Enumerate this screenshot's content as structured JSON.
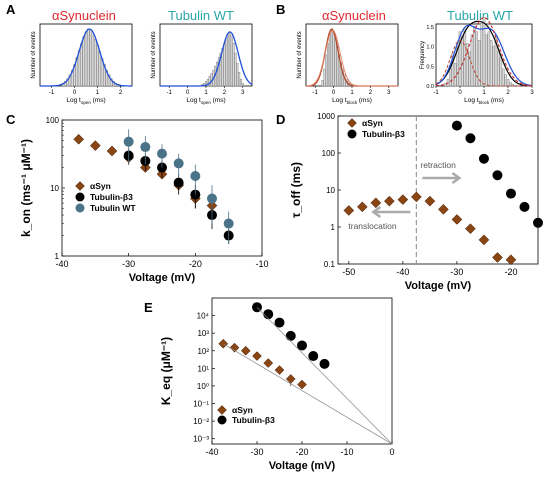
{
  "chart_data": [
    {
      "panel": "A",
      "type": "bar",
      "plots": [
        {
          "title": "αSynuclein",
          "title_color": "#e0282e",
          "ylabel": "Number of events",
          "xlabel": "Log t_open (ms)",
          "xlim": [
            -1.5,
            2.5
          ],
          "xticks": [
            "-1",
            "0",
            "1",
            "2"
          ],
          "bins_x": [
            -0.5,
            -0.4,
            -0.3,
            -0.2,
            -0.1,
            0,
            0.1,
            0.2,
            0.3,
            0.4,
            0.5,
            0.6,
            0.7,
            0.8,
            0.9,
            1.0,
            1.1,
            1.2,
            1.3,
            1.4,
            1.5,
            1.6,
            1.7,
            1.8,
            1.9
          ],
          "bins_y": [
            0.05,
            0.08,
            0.13,
            0.2,
            0.28,
            0.38,
            0.5,
            0.62,
            0.74,
            0.86,
            0.95,
            1.0,
            0.97,
            0.9,
            0.82,
            0.72,
            0.6,
            0.48,
            0.38,
            0.28,
            0.2,
            0.13,
            0.08,
            0.05,
            0.03
          ],
          "fit_color": "#1f4fd8"
        },
        {
          "title": "Tubulin WT",
          "title_color": "#2aa6a8",
          "ylabel": "Number of events",
          "xlabel": "Log t_open (ms)",
          "xlim": [
            -1.5,
            3.5
          ],
          "xticks": [
            "-1",
            "0",
            "1",
            "2",
            "3"
          ],
          "bins_x": [
            0.8,
            0.9,
            1.0,
            1.1,
            1.2,
            1.3,
            1.4,
            1.5,
            1.6,
            1.7,
            1.8,
            1.9,
            2.0,
            2.1,
            2.2,
            2.3,
            2.4,
            2.5,
            2.6,
            2.7,
            2.8,
            2.9,
            3.0
          ],
          "bins_y": [
            0.03,
            0.05,
            0.08,
            0.12,
            0.17,
            0.22,
            0.28,
            0.35,
            0.42,
            0.5,
            0.58,
            0.66,
            0.74,
            0.83,
            0.9,
            0.95,
            0.88,
            0.75,
            0.58,
            0.4,
            0.24,
            0.12,
            0.05
          ],
          "fit_color": "#1f4fd8"
        }
      ]
    },
    {
      "panel": "B",
      "type": "bar",
      "plots": [
        {
          "title": "αSynuclein",
          "title_color": "#e0282e",
          "ylabel": "Number of events",
          "xlabel": "Log t_block (ms)",
          "xlim": [
            -1.5,
            3.5
          ],
          "xticks": [
            "-1",
            "0",
            "1",
            "2",
            "3"
          ],
          "bins_x": [
            -0.6,
            -0.5,
            -0.4,
            -0.3,
            -0.2,
            -0.1,
            0,
            0.1,
            0.2,
            0.3,
            0.4,
            0.5,
            0.6,
            0.7,
            0.8,
            0.9,
            1.0,
            1.1,
            1.2
          ],
          "bins_y": [
            0.1,
            0.3,
            0.55,
            0.75,
            0.9,
            1.0,
            0.95,
            0.82,
            0.7,
            0.55,
            0.42,
            0.3,
            0.2,
            0.12,
            0.08,
            0.05,
            0.03,
            0.02,
            0.01
          ],
          "fit_color": "#b5452a"
        },
        {
          "title": "Tubulin WT",
          "title_color": "#2aa6a8",
          "ylabel": "Frequency",
          "xlabel": "Log t_block (ms)",
          "xlim": [
            -1,
            3
          ],
          "xticks": [
            "-1",
            "0",
            "1",
            "2",
            "3"
          ],
          "yticks": [
            "0.0",
            "0.5",
            "1.0",
            "1.5"
          ],
          "bins_x": [
            -0.6,
            -0.5,
            -0.4,
            -0.3,
            -0.2,
            -0.1,
            0,
            0.1,
            0.2,
            0.3,
            0.4,
            0.5,
            0.6,
            0.7,
            0.8,
            0.9,
            1.0,
            1.1,
            1.2,
            1.3,
            1.4,
            1.5,
            1.6,
            1.7,
            1.8,
            1.9,
            2.0,
            2.1,
            2.2
          ],
          "bins_y": [
            0.05,
            0.12,
            0.3,
            0.55,
            0.4,
            0.7,
            0.95,
            0.85,
            1.0,
            0.75,
            0.6,
            0.9,
            1.05,
            0.95,
            0.8,
            1.1,
            1.2,
            0.9,
            0.95,
            0.8,
            0.7,
            0.85,
            0.6,
            0.5,
            0.3,
            0.2,
            0.12,
            0.06,
            0.03
          ],
          "fit_color": "#1f4fd8"
        }
      ]
    },
    {
      "panel": "C",
      "type": "scatter",
      "ylabel": "k_on (ms⁻¹ μM⁻¹)",
      "xlabel": "Voltage (mV)",
      "xlim": [
        -40,
        -10
      ],
      "ylim": [
        1,
        100
      ],
      "yscale": "log",
      "xticks": [
        -40,
        -30,
        -20,
        -10
      ],
      "yticks": [
        1,
        10,
        100
      ],
      "legend": [
        "αSyn",
        "Tubulin-β3",
        "Tubulin WT"
      ],
      "series": [
        {
          "name": "αSyn",
          "color": "#8b4513",
          "marker": "diamond",
          "x": [
            -37.5,
            -35,
            -32.5,
            -30,
            -27.5,
            -25,
            -22.5,
            -20,
            -17.5
          ],
          "y": [
            52,
            42,
            35,
            28,
            20,
            16,
            11,
            7,
            5.5
          ],
          "err": [
            0,
            0,
            0,
            0,
            0,
            0,
            0,
            2,
            0
          ]
        },
        {
          "name": "Tubulin-β3",
          "color": "#000000",
          "marker": "circle",
          "x": [
            -30,
            -27.5,
            -25,
            -22.5,
            -20,
            -17.5,
            -15
          ],
          "y": [
            30,
            25,
            20,
            12,
            8,
            4,
            2
          ],
          "err": [
            8,
            7,
            6,
            4,
            3,
            1.5,
            0.5
          ]
        },
        {
          "name": "Tubulin WT",
          "color": "#4a7388",
          "marker": "circle",
          "x": [
            -30,
            -27.5,
            -25,
            -22.5,
            -20,
            -17.5,
            -15
          ],
          "y": [
            48,
            40,
            32,
            23,
            15,
            7,
            3
          ],
          "err": [
            25,
            18,
            12,
            9,
            7,
            4,
            1.5
          ]
        }
      ]
    },
    {
      "panel": "D",
      "type": "scatter",
      "ylabel": "τ_off (ms)",
      "xlabel": "Voltage (mV)",
      "xlim": [
        -52,
        -15
      ],
      "ylim": [
        0.1,
        1000
      ],
      "yscale": "log",
      "xticks": [
        -50,
        -40,
        -30,
        -20
      ],
      "yticks": [
        0.1,
        1,
        10,
        100,
        1000
      ],
      "legend": [
        "αSyn",
        "Tubulin-β3"
      ],
      "annotations": [
        "retraction",
        "translocation"
      ],
      "divider_x": -37.5,
      "series": [
        {
          "name": "αSyn",
          "color": "#8b4513",
          "marker": "diamond",
          "x": [
            -50,
            -47.5,
            -45,
            -42.5,
            -40,
            -37.5,
            -35,
            -32.5,
            -30,
            -27.5,
            -25,
            -22.5,
            -20
          ],
          "y": [
            2.8,
            3.5,
            4.5,
            5,
            5.5,
            6.5,
            5,
            3,
            1.6,
            0.9,
            0.45,
            0.15,
            0.13
          ]
        },
        {
          "name": "Tubulin-β3",
          "color": "#000000",
          "marker": "circle",
          "x": [
            -30,
            -27.5,
            -25,
            -22.5,
            -20,
            -17.5,
            -15
          ],
          "y": [
            550,
            250,
            70,
            25,
            8,
            3.5,
            1.3
          ]
        }
      ]
    },
    {
      "panel": "E",
      "type": "scatter",
      "ylabel": "K_eq (μM⁻¹)",
      "xlabel": "Voltage (mV)",
      "xlim": [
        -40,
        0
      ],
      "ylim": [
        0.0005,
        100000
      ],
      "yscale": "log",
      "xticks": [
        -40,
        -30,
        -20,
        -10,
        0
      ],
      "yticks": [
        0.001,
        0.01,
        0.1,
        1,
        10,
        100,
        1000,
        10000
      ],
      "ytick_labels": [
        "10⁻³",
        "10⁻²",
        "10⁻¹",
        "10⁰",
        "10¹",
        "10²",
        "10³",
        "10⁴"
      ],
      "legend": [
        "αSyn",
        "Tubulin-β3"
      ],
      "series": [
        {
          "name": "αSyn",
          "color": "#8b4513",
          "marker": "diamond",
          "x": [
            -37.5,
            -35,
            -32.5,
            -30,
            -27.5,
            -25,
            -22.5,
            -20
          ],
          "y": [
            250,
            150,
            100,
            50,
            20,
            8,
            2.5,
            1.2
          ],
          "err": [
            0,
            0,
            0,
            0,
            0,
            0,
            1.5,
            0.3
          ]
        },
        {
          "name": "Tubulin-β3",
          "color": "#000000",
          "marker": "circle",
          "x": [
            -30,
            -27.5,
            -25,
            -22.5,
            -20,
            -17.5,
            -15
          ],
          "y": [
            30000,
            12000,
            4000,
            700,
            200,
            50,
            18
          ]
        },
        {
          "name": "fit-syn",
          "type": "line",
          "color": "#888888",
          "x": [
            -37.5,
            0
          ],
          "y": [
            250,
            0.0003
          ]
        },
        {
          "name": "fit-tub",
          "type": "line",
          "color": "#888888",
          "x": [
            -30,
            0
          ],
          "y": [
            30000,
            0.0003
          ]
        }
      ]
    }
  ],
  "panel_labels": [
    "A",
    "B",
    "C",
    "D",
    "E"
  ]
}
